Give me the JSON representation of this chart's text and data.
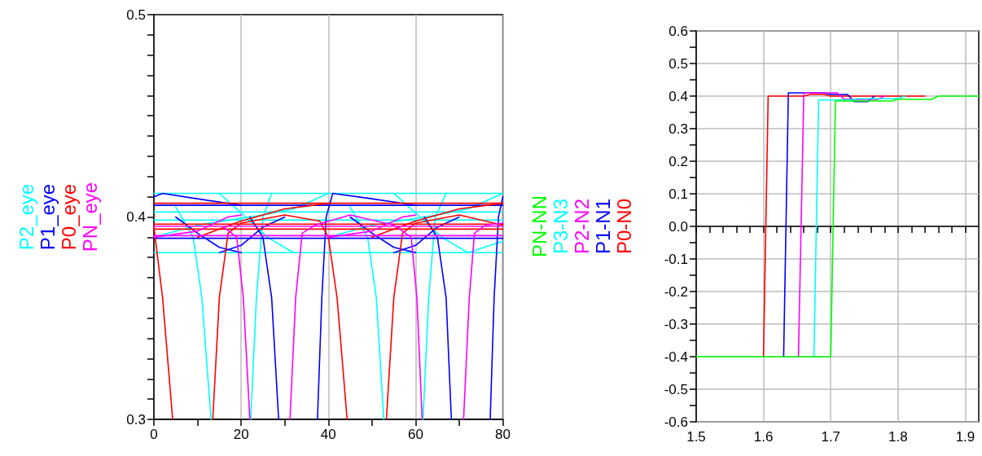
{
  "chart_data": [
    {
      "type": "line",
      "legend": "left",
      "grid": "x",
      "line_style": "solid",
      "marker": "none",
      "xlim": [
        0,
        80
      ],
      "xticks": [
        0,
        {
          "value": 10,
          "label": null
        },
        20,
        {
          "value": 30,
          "label": null
        },
        40,
        {
          "value": 50,
          "label": null
        },
        60,
        {
          "value": 70,
          "label": null
        },
        80
      ],
      "ylim": [
        0.3,
        0.5
      ],
      "yticks": [
        0.3,
        {
          "value": 0.31,
          "label": null
        },
        {
          "value": 0.32,
          "label": null
        },
        {
          "value": 0.33,
          "label": null
        },
        {
          "value": 0.34,
          "label": null
        },
        {
          "value": 0.35,
          "label": null
        },
        {
          "value": 0.36,
          "label": null
        },
        {
          "value": 0.37,
          "label": null
        },
        {
          "value": 0.38,
          "label": null
        },
        {
          "value": 0.39,
          "label": null
        },
        0.4,
        {
          "value": 0.41,
          "label": null
        },
        {
          "value": 0.42,
          "label": null
        },
        {
          "value": 0.43,
          "label": null
        },
        {
          "value": 0.44,
          "label": null
        },
        {
          "value": 0.45,
          "label": null
        },
        {
          "value": 0.46,
          "label": null
        },
        {
          "value": 0.47,
          "label": null
        },
        {
          "value": 0.48,
          "label": null
        },
        {
          "value": 0.49,
          "label": null
        },
        0.5
      ],
      "series": [
        {
          "name": "P2_eye",
          "color": "#00ffff",
          "x": [
            0,
            80
          ],
          "values": [
            0.4117,
            0.4117
          ]
        },
        {
          "color": "#00ffff",
          "x": [
            0,
            80
          ],
          "values": [
            0.3824,
            0.3824
          ]
        },
        {
          "color": "#00ffff",
          "x": [
            0,
            80
          ],
          "values": [
            0.3985,
            0.3985
          ]
        },
        {
          "color": "#00ffff",
          "x": [
            0,
            80
          ],
          "values": [
            0.4025,
            0.4025
          ]
        },
        {
          "color": "#00ffff",
          "x": [
            0,
            10,
            25,
            32,
            40
          ],
          "values": [
            0.39,
            0.396,
            0.401,
            0.404,
            0.4117
          ]
        },
        {
          "color": "#00ffff",
          "x": [
            5,
            9,
            11,
            13.1
          ],
          "values": [
            0.405,
            0.39,
            0.36,
            0.3
          ]
        },
        {
          "color": "#00ffff",
          "x": [
            22.2,
            23.5,
            25,
            27
          ],
          "values": [
            0.3,
            0.36,
            0.4,
            0.4117
          ]
        },
        {
          "color": "#00ffff",
          "x": [
            15,
            20,
            26,
            32
          ],
          "values": [
            0.4117,
            0.402,
            0.39,
            0.3824
          ]
        },
        {
          "color": "#00ffff",
          "x": [
            40,
            50,
            65,
            72,
            80
          ],
          "values": [
            0.39,
            0.396,
            0.401,
            0.404,
            0.4117
          ]
        },
        {
          "color": "#00ffff",
          "x": [
            45,
            49,
            51,
            52.7
          ],
          "values": [
            0.405,
            0.39,
            0.36,
            0.3
          ]
        },
        {
          "color": "#00ffff",
          "x": [
            61.7,
            63,
            64.5,
            67
          ],
          "values": [
            0.3,
            0.36,
            0.4,
            0.4117
          ]
        },
        {
          "color": "#00ffff",
          "x": [
            55,
            60,
            66,
            72,
            80
          ],
          "values": [
            0.4117,
            0.402,
            0.39,
            0.3824,
            0.388
          ]
        },
        {
          "name": "P1_eye",
          "color": "#0000ff",
          "x": [
            0,
            2,
            10,
            20
          ],
          "values": [
            0.41,
            0.4117,
            0.409,
            0.4058
          ]
        },
        {
          "color": "#0000ff",
          "x": [
            0,
            80
          ],
          "values": [
            0.4058,
            0.4058
          ]
        },
        {
          "color": "#0000ff",
          "x": [
            0,
            80
          ],
          "values": [
            0.3895,
            0.3895
          ]
        },
        {
          "color": "#0000ff",
          "x": [
            22,
            25,
            27,
            28.6
          ],
          "values": [
            0.4,
            0.39,
            0.36,
            0.3
          ]
        },
        {
          "color": "#0000ff",
          "x": [
            37.5,
            38.5,
            39.5,
            41,
            50,
            60
          ],
          "values": [
            0.3,
            0.36,
            0.4,
            0.4117,
            0.409,
            0.4058
          ]
        },
        {
          "color": "#0000ff",
          "x": [
            62,
            65,
            67,
            68.2
          ],
          "values": [
            0.4,
            0.39,
            0.36,
            0.3
          ]
        },
        {
          "color": "#0000ff",
          "x": [
            77.1,
            78,
            79,
            80
          ],
          "values": [
            0.3,
            0.36,
            0.4,
            0.41
          ]
        },
        {
          "color": "#0000ff",
          "x": [
            5,
            10,
            15,
            20
          ],
          "values": [
            0.4,
            0.392,
            0.385,
            0.3824
          ]
        },
        {
          "color": "#0000ff",
          "x": [
            15,
            20,
            25,
            30
          ],
          "values": [
            0.3824,
            0.386,
            0.395,
            0.4
          ]
        },
        {
          "color": "#0000ff",
          "x": [
            45,
            50,
            55,
            60
          ],
          "values": [
            0.4,
            0.392,
            0.385,
            0.3824
          ]
        },
        {
          "color": "#0000ff",
          "x": [
            55,
            60,
            65,
            70
          ],
          "values": [
            0.3824,
            0.386,
            0.395,
            0.4
          ]
        },
        {
          "name": "P0_eye",
          "color": "#ff0000",
          "x": [
            0,
            2,
            4.3
          ],
          "values": [
            0.395,
            0.36,
            0.3
          ]
        },
        {
          "color": "#ff0000",
          "x": [
            0,
            80
          ],
          "values": [
            0.4068,
            0.4068
          ]
        },
        {
          "color": "#ff0000",
          "x": [
            0,
            80
          ],
          "values": [
            0.3965,
            0.3965
          ]
        },
        {
          "color": "#ff0000",
          "x": [
            0,
            80
          ],
          "values": [
            0.394,
            0.394
          ]
        },
        {
          "color": "#ff0000",
          "x": [
            13.5,
            15,
            17,
            20,
            30,
            38,
            40,
            42,
            44.3
          ],
          "values": [
            0.3,
            0.36,
            0.392,
            0.397,
            0.401,
            0.398,
            0.39,
            0.36,
            0.3
          ]
        },
        {
          "color": "#ff0000",
          "x": [
            53.3,
            55,
            57,
            60,
            70,
            80
          ],
          "values": [
            0.3,
            0.36,
            0.392,
            0.397,
            0.401,
            0.396
          ]
        },
        {
          "color": "#ff0000",
          "x": [
            10,
            20,
            30,
            40
          ],
          "values": [
            0.39,
            0.398,
            0.404,
            0.4068
          ]
        },
        {
          "color": "#ff0000",
          "x": [
            50,
            60,
            70,
            80
          ],
          "values": [
            0.39,
            0.398,
            0.404,
            0.4068
          ]
        },
        {
          "name": "PN_eye",
          "color": "#ff00ff",
          "x": [
            16,
            19,
            20.5,
            22
          ],
          "values": [
            0.395,
            0.39,
            0.36,
            0.3
          ]
        },
        {
          "color": "#ff00ff",
          "x": [
            0,
            80
          ],
          "values": [
            0.3908,
            0.3908
          ]
        },
        {
          "color": "#ff00ff",
          "x": [
            0,
            80
          ],
          "values": [
            0.3955,
            0.3955
          ]
        },
        {
          "color": "#ff00ff",
          "x": [
            0,
            10,
            17,
            20
          ],
          "values": [
            0.39,
            0.393,
            0.4,
            0.401
          ]
        },
        {
          "color": "#ff00ff",
          "x": [
            31.2,
            32.5,
            34,
            37,
            45,
            55,
            59,
            60.3,
            61.5
          ],
          "values": [
            0.3,
            0.36,
            0.392,
            0.396,
            0.401,
            0.396,
            0.39,
            0.36,
            0.3
          ]
        },
        {
          "color": "#ff00ff",
          "x": [
            71,
            72.3,
            73.5,
            76,
            80
          ],
          "values": [
            0.3,
            0.36,
            0.392,
            0.396,
            0.397
          ]
        },
        {
          "color": "#ff00ff",
          "x": [
            40,
            50,
            57,
            60
          ],
          "values": [
            0.39,
            0.393,
            0.4,
            0.401
          ]
        }
      ]
    },
    {
      "type": "line",
      "legend": "left",
      "grid": true,
      "line_style": "solid",
      "marker": "none",
      "xlim": [
        1.5,
        1.92
      ],
      "xticks": [
        1.5,
        {
          "value": 1.52,
          "label": null
        },
        {
          "value": 1.54,
          "label": null
        },
        {
          "value": 1.56,
          "label": null
        },
        {
          "value": 1.58,
          "label": null
        },
        1.6,
        {
          "value": 1.62,
          "label": null
        },
        {
          "value": 1.64,
          "label": null
        },
        {
          "value": 1.66,
          "label": null
        },
        {
          "value": 1.68,
          "label": null
        },
        1.7,
        {
          "value": 1.72,
          "label": null
        },
        {
          "value": 1.74,
          "label": null
        },
        {
          "value": 1.76,
          "label": null
        },
        {
          "value": 1.78,
          "label": null
        },
        1.8,
        {
          "value": 1.82,
          "label": null
        },
        {
          "value": 1.84,
          "label": null
        },
        {
          "value": 1.86,
          "label": null
        },
        {
          "value": 1.88,
          "label": null
        },
        1.9
      ],
      "ylim": [
        -0.6,
        0.6
      ],
      "yticks": [
        -0.6,
        {
          "value": -0.55,
          "label": null
        },
        -0.5,
        {
          "value": -0.45,
          "label": null
        },
        -0.4,
        {
          "value": -0.35,
          "label": null
        },
        -0.3,
        {
          "value": -0.25,
          "label": null
        },
        -0.2,
        {
          "value": -0.15,
          "label": null
        },
        -0.1,
        {
          "value": -0.05,
          "label": null
        },
        {
          "value": 0,
          "label": "0.0"
        },
        {
          "value": 0.05,
          "label": null
        },
        0.1,
        {
          "value": 0.15,
          "label": null
        },
        0.2,
        {
          "value": 0.25,
          "label": null
        },
        0.3,
        {
          "value": 0.35,
          "label": null
        },
        0.4,
        {
          "value": 0.45,
          "label": null
        },
        0.5,
        {
          "value": 0.55,
          "label": null
        },
        0.6
      ],
      "series": [
        {
          "name": "PN-NN",
          "color": "#00ff00",
          "x": [
            1.5,
            1.7,
            1.707,
            1.79,
            1.8,
            1.85,
            1.86,
            1.92
          ],
          "values": [
            -0.4,
            -0.4,
            0.385,
            0.385,
            0.39,
            0.39,
            0.4,
            0.4
          ]
        },
        {
          "name": "P3-N3",
          "color": "#00ffff",
          "x": [
            1.675,
            1.682,
            1.73,
            1.74,
            1.8,
            1.81
          ],
          "values": [
            -0.4,
            0.388,
            0.388,
            0.392,
            0.392,
            0.4
          ]
        },
        {
          "name": "P2-N2",
          "color": "#ff00ff",
          "x": [
            1.652,
            1.66,
            1.71,
            1.72,
            1.77,
            1.78
          ],
          "values": [
            -0.4,
            0.41,
            0.41,
            0.39,
            0.39,
            0.4
          ]
        },
        {
          "name": "P1-N1",
          "color": "#0000ff",
          "x": [
            1.63,
            1.637,
            1.69,
            1.7,
            1.725,
            1.735,
            1.755,
            1.765
          ],
          "values": [
            -0.4,
            0.41,
            0.41,
            0.405,
            0.405,
            0.383,
            0.383,
            0.4
          ]
        },
        {
          "name": "P0-N0",
          "color": "#ff0000",
          "x": [
            1.6,
            1.607,
            1.66,
            1.67,
            1.69,
            1.7,
            1.84
          ],
          "values": [
            -0.4,
            0.4,
            0.4,
            0.405,
            0.405,
            0.4,
            0.4
          ]
        }
      ]
    }
  ]
}
